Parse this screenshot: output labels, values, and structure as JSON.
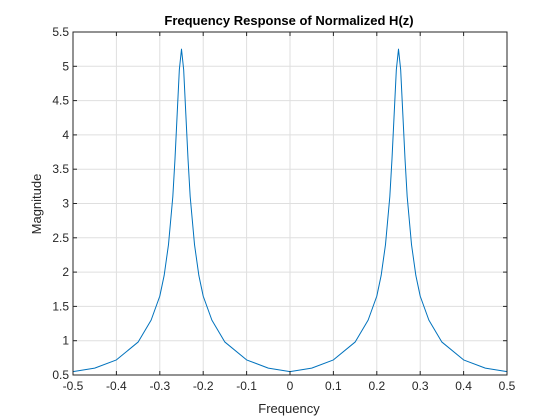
{
  "chart_data": {
    "type": "line",
    "title": "Frequency Response of Normalized H(z)",
    "xlabel": "Frequency",
    "ylabel": "Magnitude",
    "xlim": [
      -0.5,
      0.5
    ],
    "ylim": [
      0.5,
      5.5
    ],
    "grid": true,
    "x_ticks": [
      -0.5,
      -0.4,
      -0.3,
      -0.2,
      -0.1,
      0,
      0.1,
      0.2,
      0.3,
      0.4,
      0.5
    ],
    "x_tick_labels": [
      "-0.5",
      "-0.4",
      "-0.3",
      "-0.2",
      "-0.1",
      "0",
      "0.1",
      "0.2",
      "0.3",
      "0.4",
      "0.5"
    ],
    "y_ticks": [
      0.5,
      1,
      1.5,
      2,
      2.5,
      3,
      3.5,
      4,
      4.5,
      5,
      5.5
    ],
    "y_tick_labels": [
      "0.5",
      "1",
      "1.5",
      "2",
      "2.5",
      "3",
      "3.5",
      "4",
      "4.5",
      "5",
      "5.5"
    ],
    "series": [
      {
        "color": "#0072BD",
        "x": [
          -0.5,
          -0.45,
          -0.4,
          -0.35,
          -0.32,
          -0.3,
          -0.29,
          -0.28,
          -0.27,
          -0.265,
          -0.26,
          -0.255,
          -0.25,
          -0.245,
          -0.24,
          -0.235,
          -0.23,
          -0.22,
          -0.21,
          -0.2,
          -0.18,
          -0.15,
          -0.1,
          -0.05,
          0,
          0.05,
          0.1,
          0.15,
          0.18,
          0.2,
          0.21,
          0.22,
          0.23,
          0.235,
          0.24,
          0.245,
          0.25,
          0.255,
          0.26,
          0.265,
          0.27,
          0.28,
          0.29,
          0.3,
          0.32,
          0.35,
          0.4,
          0.45,
          0.5
        ],
        "y": [
          0.55,
          0.6,
          0.72,
          0.98,
          1.3,
          1.65,
          1.95,
          2.4,
          3.1,
          3.65,
          4.3,
          4.95,
          5.25,
          4.95,
          4.3,
          3.65,
          3.1,
          2.4,
          1.95,
          1.65,
          1.3,
          0.98,
          0.72,
          0.6,
          0.55,
          0.6,
          0.72,
          0.98,
          1.3,
          1.65,
          1.95,
          2.4,
          3.1,
          3.65,
          4.3,
          4.95,
          5.25,
          4.95,
          4.3,
          3.65,
          3.1,
          2.4,
          1.95,
          1.65,
          1.3,
          0.98,
          0.72,
          0.6,
          0.55
        ]
      }
    ]
  }
}
